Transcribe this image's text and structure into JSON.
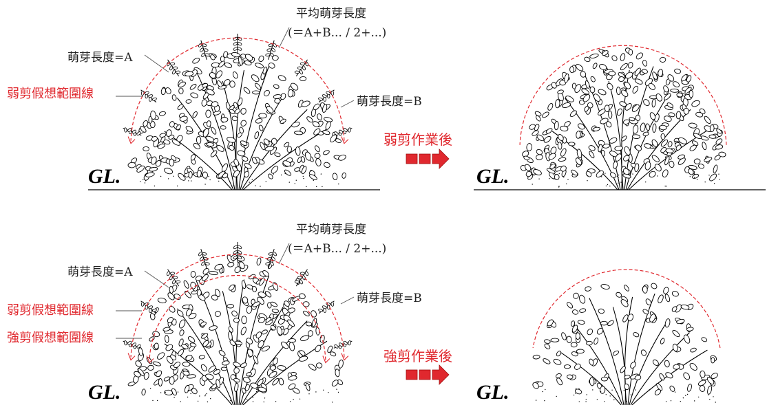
{
  "top": {
    "avg_label": "平均萌芽長度",
    "avg_formula": "(＝A+B... / 2+...)",
    "length_a": "萌芽長度=A",
    "length_b": "萌芽長度=B",
    "light_line": "弱剪假想範圍線",
    "after_label": "弱剪作業後",
    "gl_left": "GL.",
    "gl_right": "GL."
  },
  "bottom": {
    "avg_label": "平均萌芽長度",
    "avg_formula": "(＝A+B... / 2+...)",
    "length_a": "萌芽長度=A",
    "length_b": "萌芽長度=B",
    "light_line": "弱剪假想範圍線",
    "heavy_line": "強剪假想範圍線",
    "after_label": "強剪作業後",
    "gl_left": "GL.",
    "gl_right": "GL."
  },
  "colors": {
    "accent_red": "#e0282e",
    "ink": "#000000"
  }
}
